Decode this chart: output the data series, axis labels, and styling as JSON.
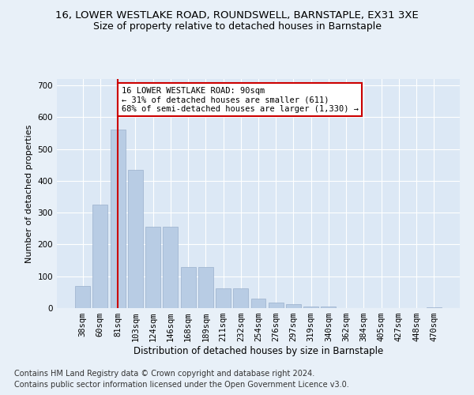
{
  "title1": "16, LOWER WESTLAKE ROAD, ROUNDSWELL, BARNSTAPLE, EX31 3XE",
  "title2": "Size of property relative to detached houses in Barnstaple",
  "xlabel": "Distribution of detached houses by size in Barnstaple",
  "ylabel": "Number of detached properties",
  "categories": [
    "38sqm",
    "60sqm",
    "81sqm",
    "103sqm",
    "124sqm",
    "146sqm",
    "168sqm",
    "189sqm",
    "211sqm",
    "232sqm",
    "254sqm",
    "276sqm",
    "297sqm",
    "319sqm",
    "340sqm",
    "362sqm",
    "384sqm",
    "405sqm",
    "427sqm",
    "448sqm",
    "470sqm"
  ],
  "values": [
    70,
    325,
    560,
    435,
    255,
    255,
    130,
    130,
    63,
    63,
    30,
    18,
    12,
    5,
    5,
    0,
    0,
    0,
    0,
    0,
    3
  ],
  "bar_color": "#b8cce4",
  "bar_edge_color": "#9ab0cc",
  "vline_x": 2.0,
  "vline_color": "#cc0000",
  "annotation_box_text": "16 LOWER WESTLAKE ROAD: 90sqm\n← 31% of detached houses are smaller (611)\n68% of semi-detached houses are larger (1,330) →",
  "annotation_box_color": "#cc0000",
  "footnote1": "Contains HM Land Registry data © Crown copyright and database right 2024.",
  "footnote2": "Contains public sector information licensed under the Open Government Licence v3.0.",
  "bg_color": "#e8f0f8",
  "plot_bg_color": "#dce8f5",
  "grid_color": "#ffffff",
  "ylim": [
    0,
    720
  ],
  "yticks": [
    0,
    100,
    200,
    300,
    400,
    500,
    600,
    700
  ],
  "title1_fontsize": 9.5,
  "title2_fontsize": 9,
  "xlabel_fontsize": 8.5,
  "ylabel_fontsize": 8,
  "tick_fontsize": 7.5,
  "footnote_fontsize": 7
}
